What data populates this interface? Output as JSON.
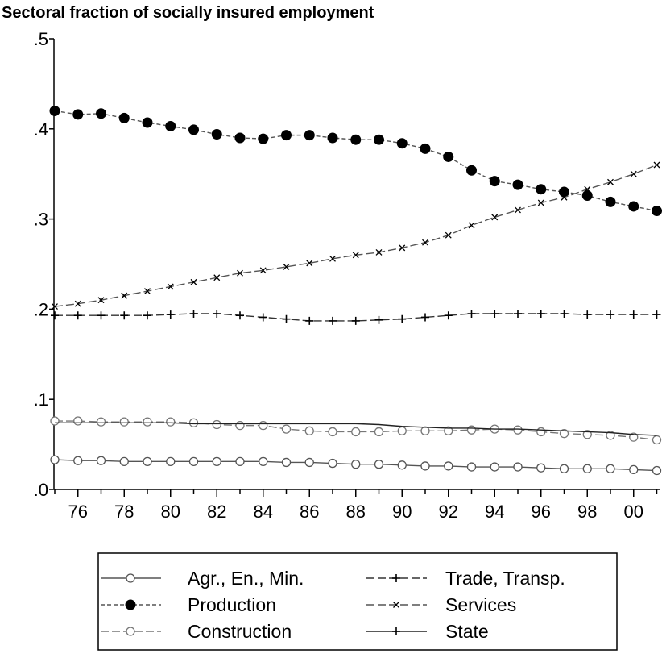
{
  "chart_data": {
    "type": "line",
    "title": "Sectoral fraction of socially insured employment",
    "categories": [
      null,
      "76",
      null,
      "78",
      null,
      "80",
      null,
      "82",
      null,
      "84",
      null,
      "86",
      null,
      "88",
      null,
      "90",
      null,
      "92",
      null,
      "94",
      null,
      "96",
      null,
      "98",
      null,
      "00",
      null
    ],
    "ylim": [
      0,
      0.5
    ],
    "yticks": [
      {
        "value": 0,
        "label": ".0"
      },
      {
        "value": 0.1,
        "label": ".1"
      },
      {
        "value": 0.2,
        "label": ".2"
      },
      {
        "value": 0.3,
        "label": ".3"
      },
      {
        "value": 0.4,
        "label": ".4"
      },
      {
        "value": 0.5,
        "label": ".5"
      }
    ],
    "grid": false,
    "series": [
      {
        "name": "Agr., En., Min.",
        "color": "#555555",
        "dash": "solid",
        "marker": "circle-open",
        "values": [
          0.033,
          0.032,
          0.032,
          0.031,
          0.031,
          0.031,
          0.031,
          0.031,
          0.031,
          0.031,
          0.03,
          0.03,
          0.029,
          0.028,
          0.028,
          0.027,
          0.026,
          0.026,
          0.025,
          0.025,
          0.025,
          0.024,
          0.023,
          0.023,
          0.023,
          0.022,
          0.021
        ]
      },
      {
        "name": "Trade, Transp.",
        "color": "#333333",
        "dash": "longdash",
        "marker": "plus",
        "values": [
          0.193,
          0.193,
          0.193,
          0.193,
          0.193,
          0.194,
          0.195,
          0.195,
          0.193,
          0.191,
          0.189,
          0.187,
          0.187,
          0.187,
          0.188,
          0.189,
          0.191,
          0.193,
          0.195,
          0.195,
          0.195,
          0.195,
          0.195,
          0.194,
          0.194,
          0.194,
          0.194
        ]
      },
      {
        "name": "Production",
        "color": "#555555",
        "dash": "dashed",
        "marker": "circle-filled",
        "values": [
          0.42,
          0.416,
          0.417,
          0.412,
          0.407,
          0.403,
          0.399,
          0.394,
          0.39,
          0.389,
          0.393,
          0.393,
          0.39,
          0.388,
          0.388,
          0.384,
          0.378,
          0.369,
          0.354,
          0.342,
          0.338,
          0.333,
          0.33,
          0.326,
          0.319,
          0.314,
          0.309
        ]
      },
      {
        "name": "Services",
        "color": "#555555",
        "dash": "longdash",
        "marker": "x",
        "values": [
          0.203,
          0.206,
          0.21,
          0.215,
          0.22,
          0.225,
          0.23,
          0.235,
          0.24,
          0.243,
          0.247,
          0.251,
          0.256,
          0.26,
          0.263,
          0.268,
          0.274,
          0.282,
          0.293,
          0.302,
          0.31,
          0.318,
          0.324,
          0.333,
          0.341,
          0.35,
          0.36
        ]
      },
      {
        "name": "Construction",
        "color": "#777777",
        "dash": "longdash",
        "marker": "circle-open",
        "values": [
          0.076,
          0.076,
          0.075,
          0.075,
          0.075,
          0.075,
          0.074,
          0.072,
          0.071,
          0.071,
          0.067,
          0.065,
          0.064,
          0.064,
          0.064,
          0.065,
          0.065,
          0.065,
          0.066,
          0.067,
          0.066,
          0.064,
          0.062,
          0.061,
          0.06,
          0.058,
          0.055
        ]
      },
      {
        "name": "State",
        "color": "#222222",
        "dash": "solid",
        "marker": "none",
        "values": [
          0.074,
          0.074,
          0.074,
          0.074,
          0.074,
          0.074,
          0.073,
          0.073,
          0.073,
          0.073,
          0.073,
          0.073,
          0.073,
          0.073,
          0.072,
          0.07,
          0.069,
          0.068,
          0.068,
          0.067,
          0.067,
          0.066,
          0.065,
          0.064,
          0.063,
          0.061,
          0.06
        ]
      }
    ]
  }
}
